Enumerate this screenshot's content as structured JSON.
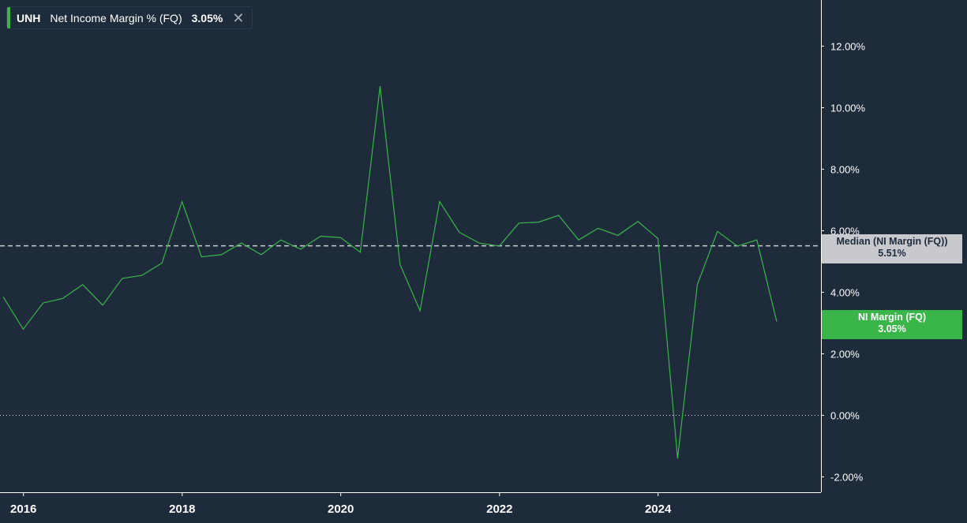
{
  "legend": {
    "ticker": "UNH",
    "metric": "Net Income Margin % (FQ)",
    "value": "3.05%",
    "close_icon": "close-icon"
  },
  "tags": {
    "median_label": "Median (NI Margin (FQ))",
    "median_value": "5.51%",
    "current_label": "NI Margin (FQ)",
    "current_value": "3.05%"
  },
  "colors": {
    "background": "#1e2b3b",
    "series": "#3ab54a",
    "median": "#c7c9cc"
  },
  "chart_data": {
    "type": "line",
    "series": [
      {
        "name": "NI Margin (FQ)",
        "x": [
          "2015-09-30",
          "2015-12-31",
          "2016-03-31",
          "2016-06-30",
          "2016-09-30",
          "2016-12-31",
          "2017-03-31",
          "2017-06-30",
          "2017-09-30",
          "2017-12-31",
          "2018-03-31",
          "2018-06-30",
          "2018-09-30",
          "2018-12-31",
          "2019-03-31",
          "2019-06-30",
          "2019-09-30",
          "2019-12-31",
          "2020-03-31",
          "2020-06-30",
          "2020-09-30",
          "2020-12-31",
          "2021-03-31",
          "2021-06-30",
          "2021-09-30",
          "2021-12-31",
          "2022-03-31",
          "2022-06-30",
          "2022-09-30",
          "2022-12-31",
          "2023-03-31",
          "2023-06-30",
          "2023-09-30",
          "2023-12-31",
          "2024-03-31",
          "2024-06-30",
          "2024-09-30",
          "2024-12-31",
          "2025-03-31",
          "2025-06-30"
        ],
        "values": [
          3.85,
          2.8,
          3.65,
          3.8,
          4.25,
          3.58,
          4.45,
          4.55,
          4.95,
          6.95,
          5.15,
          5.22,
          5.6,
          5.22,
          5.7,
          5.4,
          5.82,
          5.78,
          5.3,
          10.7,
          4.9,
          3.4,
          6.95,
          5.95,
          5.6,
          5.5,
          6.25,
          6.28,
          6.5,
          5.7,
          6.08,
          5.85,
          6.3,
          5.75,
          -1.4,
          4.25,
          5.98,
          5.5,
          5.7,
          3.05
        ]
      }
    ],
    "median": 5.51,
    "current": 3.05,
    "x_ticks": [
      "2016",
      "2018",
      "2020",
      "2022",
      "2024"
    ],
    "y_ticks": [
      "-2.00%",
      "0.00%",
      "2.00%",
      "4.00%",
      "6.00%",
      "8.00%",
      "10.00%",
      "12.00%"
    ],
    "y_tick_values": [
      -2,
      0,
      2,
      4,
      6,
      8,
      10,
      12
    ],
    "ylim": [
      -2.5,
      13.5
    ],
    "xlim": [
      "2015-09-15",
      "2026-01-20"
    ],
    "y_axis_position": "right",
    "grid": false
  }
}
